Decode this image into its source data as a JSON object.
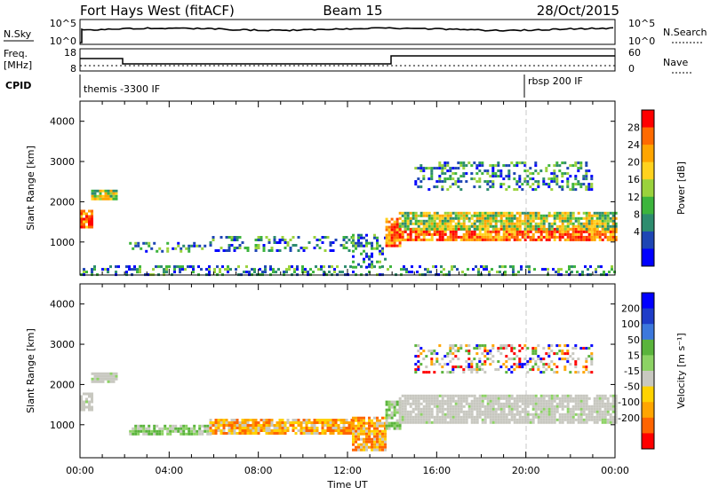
{
  "header": {
    "station": "Fort Hays West (fitACF)",
    "beam": "Beam 15",
    "date": "28/Oct/2015"
  },
  "status_panel": {
    "nsky_label": "N.Sky",
    "nsky_ticks": [
      "10^5",
      "10^0"
    ],
    "nsearch_label": "N.Search",
    "nsearch_ticks": [
      "10^5",
      "10^0"
    ],
    "freq_label": "Freq.",
    "freq_unit": "[MHz]",
    "freq_ticks": [
      "18",
      "8"
    ],
    "nave_label": "Nave",
    "nave_ticks": [
      "60",
      "0"
    ],
    "cpid_label": "CPID",
    "cpid_segments": [
      "themis -3300 IF",
      "rbsp 200 IF"
    ]
  },
  "chart_data": [
    {
      "type": "heatmap",
      "name": "power-panel",
      "ylabel": "Slant Range [km]",
      "xlabel": "",
      "yticks": [
        1000,
        2000,
        3000,
        4000
      ],
      "ylim": [
        180,
        4500
      ],
      "xlim_hours": [
        0,
        24
      ],
      "xticks": [
        "00:00",
        "04:00",
        "08:00",
        "12:00",
        "16:00",
        "20:00",
        "00:00"
      ],
      "colorbar": {
        "label": "Power [dB]",
        "ticks": [
          "28",
          "24",
          "20",
          "16",
          "12",
          "8",
          "4"
        ],
        "colors": [
          "#ff0000",
          "#ff6a00",
          "#ffa500",
          "#ffd21e",
          "#9ad23c",
          "#3cb43c",
          "#2d8c6e",
          "#1e46b4",
          "#0000ff"
        ]
      },
      "regions": [
        {
          "t0": 0.0,
          "t1": 0.5,
          "r0": 1350,
          "r1": 1800,
          "level": "strong"
        },
        {
          "t0": 0.5,
          "t1": 1.6,
          "r0": 2050,
          "r1": 2300,
          "level": "moderate"
        },
        {
          "t0": 2.2,
          "t1": 5.8,
          "r0": 750,
          "r1": 1000,
          "level": "weak"
        },
        {
          "t0": 5.8,
          "t1": 12.2,
          "r0": 800,
          "r1": 1150,
          "level": "weak"
        },
        {
          "t0": 12.2,
          "t1": 13.7,
          "r0": 350,
          "r1": 1200,
          "level": "weak"
        },
        {
          "t0": 13.7,
          "t1": 14.3,
          "r0": 900,
          "r1": 1600,
          "level": "strong"
        },
        {
          "t0": 14.3,
          "t1": 24.0,
          "r0": 1050,
          "r1": 1350,
          "level": "strong"
        },
        {
          "t0": 14.3,
          "t1": 24.0,
          "r0": 1350,
          "r1": 1750,
          "level": "moderate"
        },
        {
          "t0": 15.0,
          "t1": 23.0,
          "r0": 2300,
          "r1": 3000,
          "level": "weak"
        },
        {
          "t0": 0.0,
          "t1": 24.0,
          "r0": 180,
          "r1": 420,
          "level": "weak"
        }
      ]
    },
    {
      "type": "heatmap",
      "name": "velocity-panel",
      "ylabel": "Slant Range [km]",
      "xlabel": "Time UT",
      "yticks": [
        1000,
        2000,
        3000,
        4000
      ],
      "ylim": [
        180,
        4500
      ],
      "xlim_hours": [
        0,
        24
      ],
      "xticks": [
        "00:00",
        "04:00",
        "08:00",
        "12:00",
        "16:00",
        "20:00",
        "00:00"
      ],
      "colorbar": {
        "label": "Velocity [m s⁻¹]",
        "ticks": [
          "200",
          "100",
          "50",
          "15",
          "-15",
          "-50",
          "-100",
          "-200"
        ],
        "colors": [
          "#0000ff",
          "#1e3cc8",
          "#3c78dc",
          "#5ab43c",
          "#8cd264",
          "#c8c8c0",
          "#ffd200",
          "#ffa500",
          "#ff6400",
          "#ff0000"
        ]
      },
      "regions": [
        {
          "t0": 0.0,
          "t1": 0.5,
          "r0": 1350,
          "r1": 1800,
          "class": "ground"
        },
        {
          "t0": 0.5,
          "t1": 1.6,
          "r0": 2050,
          "r1": 2300,
          "class": "ground"
        },
        {
          "t0": 2.2,
          "t1": 5.8,
          "r0": 750,
          "r1": 1000,
          "class": "green"
        },
        {
          "t0": 5.8,
          "t1": 12.2,
          "r0": 800,
          "r1": 1150,
          "class": "orange"
        },
        {
          "t0": 12.2,
          "t1": 13.7,
          "r0": 350,
          "r1": 1200,
          "class": "orange"
        },
        {
          "t0": 13.7,
          "t1": 14.3,
          "r0": 900,
          "r1": 1600,
          "class": "green"
        },
        {
          "t0": 14.3,
          "t1": 24.0,
          "r0": 1050,
          "r1": 1750,
          "class": "ground"
        },
        {
          "t0": 15.0,
          "t1": 23.0,
          "r0": 2300,
          "r1": 3000,
          "class": "mixed"
        }
      ]
    }
  ]
}
